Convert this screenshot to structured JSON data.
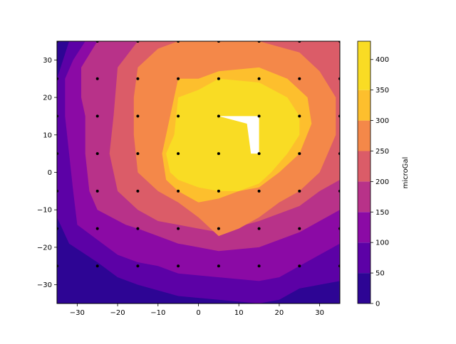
{
  "chart_data": {
    "type": "contourf",
    "title": "",
    "xlabel": "",
    "ylabel": "",
    "xlim": [
      -35,
      35
    ],
    "ylim": [
      -35,
      35
    ],
    "x_ticks": [
      -30,
      -20,
      -10,
      0,
      10,
      20,
      30
    ],
    "y_ticks": [
      -30,
      -20,
      -10,
      0,
      10,
      20,
      30
    ],
    "colorbar": {
      "label": "microGal",
      "range": [
        0,
        430
      ],
      "ticks": [
        0,
        50,
        100,
        150,
        200,
        250,
        300,
        350,
        400
      ],
      "colormap": "plasma"
    },
    "levels": [
      {
        "min": 0,
        "max": 50,
        "color": "#2d0594"
      },
      {
        "min": 50,
        "max": 100,
        "color": "#5c01a6"
      },
      {
        "min": 100,
        "max": 150,
        "color": "#8b0aa5"
      },
      {
        "min": 150,
        "max": 200,
        "color": "#b83289"
      },
      {
        "min": 200,
        "max": 250,
        "color": "#db5c68"
      },
      {
        "min": 250,
        "max": 300,
        "color": "#f48849"
      },
      {
        "min": 300,
        "max": 350,
        "color": "#fdbf2d"
      },
      {
        "min": 350,
        "max": 430,
        "color": "#f9dc24"
      }
    ],
    "contours": [
      {
        "level": 1,
        "points": [
          [
            -32,
            35
          ],
          [
            -35,
            25
          ],
          [
            -35,
            -12
          ],
          [
            -32,
            -19
          ],
          [
            -25,
            -24
          ],
          [
            -20,
            -28
          ],
          [
            -15,
            -30
          ],
          [
            -5,
            -33
          ],
          [
            5,
            -34
          ],
          [
            15,
            -35
          ],
          [
            20,
            -34
          ],
          [
            25,
            -31
          ],
          [
            30,
            -30
          ],
          [
            35,
            -29
          ],
          [
            35,
            35
          ]
        ]
      },
      {
        "level": 2,
        "points": [
          [
            -28,
            35
          ],
          [
            -31,
            30
          ],
          [
            -33,
            25
          ],
          [
            -33,
            15
          ],
          [
            -32,
            5
          ],
          [
            -31,
            -5
          ],
          [
            -30,
            -14
          ],
          [
            -25,
            -18
          ],
          [
            -20,
            -22
          ],
          [
            -15,
            -24
          ],
          [
            -10,
            -25
          ],
          [
            -5,
            -27
          ],
          [
            5,
            -28
          ],
          [
            15,
            -29
          ],
          [
            20,
            -28
          ],
          [
            25,
            -25
          ],
          [
            30,
            -22
          ],
          [
            35,
            -19
          ],
          [
            35,
            35
          ]
        ]
      },
      {
        "level": 3,
        "points": [
          [
            -25,
            35
          ],
          [
            -29,
            28
          ],
          [
            -29,
            20
          ],
          [
            -28,
            15
          ],
          [
            -28,
            5
          ],
          [
            -27,
            -5
          ],
          [
            -25,
            -10
          ],
          [
            -18,
            -14
          ],
          [
            -15,
            -15
          ],
          [
            -10,
            -17
          ],
          [
            -5,
            -19
          ],
          [
            0,
            -20
          ],
          [
            5,
            -21
          ],
          [
            15,
            -20
          ],
          [
            25,
            -16
          ],
          [
            30,
            -13
          ],
          [
            35,
            -10
          ],
          [
            35,
            35
          ]
        ]
      },
      {
        "level": 4,
        "points": [
          [
            -15,
            35
          ],
          [
            -20,
            28
          ],
          [
            -21,
            15
          ],
          [
            -22,
            5
          ],
          [
            -20,
            -5
          ],
          [
            -15,
            -10
          ],
          [
            -10,
            -13
          ],
          [
            -5,
            -14
          ],
          [
            0,
            -15
          ],
          [
            5,
            -16
          ],
          [
            15,
            -13
          ],
          [
            25,
            -9
          ],
          [
            30,
            -5
          ],
          [
            35,
            -2
          ],
          [
            35,
            35
          ]
        ]
      },
      {
        "level": 5,
        "points": [
          [
            -10,
            33
          ],
          [
            -15,
            28
          ],
          [
            -16,
            20
          ],
          [
            -16,
            10
          ],
          [
            -15,
            0
          ],
          [
            -10,
            -5
          ],
          [
            -5,
            -8
          ],
          [
            0,
            -12
          ],
          [
            5,
            -17
          ],
          [
            10,
            -15
          ],
          [
            15,
            -12
          ],
          [
            20,
            -8
          ],
          [
            25,
            -5
          ],
          [
            30,
            0
          ],
          [
            34,
            10
          ],
          [
            34,
            20
          ],
          [
            30,
            27
          ],
          [
            25,
            32
          ],
          [
            15,
            35
          ],
          [
            -5,
            35
          ]
        ]
      },
      {
        "level": 6,
        "points": [
          [
            -5,
            25
          ],
          [
            -7,
            15
          ],
          [
            -9,
            5
          ],
          [
            -8,
            -2
          ],
          [
            -5,
            -5
          ],
          [
            0,
            -8
          ],
          [
            5,
            -7
          ],
          [
            10,
            -5
          ],
          [
            15,
            -4
          ],
          [
            20,
            0
          ],
          [
            25,
            5
          ],
          [
            28,
            13
          ],
          [
            27,
            20
          ],
          [
            22,
            25
          ],
          [
            15,
            28
          ],
          [
            5,
            27
          ],
          [
            0,
            25
          ]
        ]
      },
      {
        "level": 7,
        "points": [
          [
            -5,
            20
          ],
          [
            -6,
            10
          ],
          [
            -8,
            5
          ],
          [
            -7,
            0
          ],
          [
            -5,
            -2
          ],
          [
            0,
            -4
          ],
          [
            5,
            -5
          ],
          [
            10,
            -5
          ],
          [
            15,
            -3
          ],
          [
            18,
            0
          ],
          [
            22,
            5
          ],
          [
            25,
            10
          ],
          [
            25,
            15
          ],
          [
            22,
            20
          ],
          [
            15,
            24
          ],
          [
            5,
            25
          ],
          [
            0,
            22
          ]
        ]
      }
    ],
    "hole": [
      [
        5,
        15
      ],
      [
        15,
        15
      ],
      [
        15,
        5
      ],
      [
        13,
        5
      ],
      [
        12,
        13
      ]
    ],
    "stations": [
      [
        -35,
        35
      ],
      [
        -25,
        35
      ],
      [
        -15,
        35
      ],
      [
        -5,
        35
      ],
      [
        5,
        35
      ],
      [
        15,
        35
      ],
      [
        25,
        35
      ],
      [
        35,
        35
      ],
      [
        -35,
        25
      ],
      [
        -25,
        25
      ],
      [
        -15,
        25
      ],
      [
        -5,
        25
      ],
      [
        5,
        25
      ],
      [
        15,
        25
      ],
      [
        25,
        25
      ],
      [
        35,
        25
      ],
      [
        -35,
        15
      ],
      [
        -25,
        15
      ],
      [
        -15,
        15
      ],
      [
        -5,
        15
      ],
      [
        5,
        15
      ],
      [
        15,
        15
      ],
      [
        25,
        15
      ],
      [
        35,
        15
      ],
      [
        -35,
        5
      ],
      [
        -25,
        5
      ],
      [
        -15,
        5
      ],
      [
        -5,
        5
      ],
      [
        5,
        5
      ],
      [
        15,
        5
      ],
      [
        25,
        5
      ],
      [
        35,
        5
      ],
      [
        -35,
        -5
      ],
      [
        -25,
        -5
      ],
      [
        -15,
        -5
      ],
      [
        -5,
        -5
      ],
      [
        5,
        -5
      ],
      [
        15,
        -5
      ],
      [
        25,
        -5
      ],
      [
        35,
        -5
      ],
      [
        -35,
        -15
      ],
      [
        -25,
        -15
      ],
      [
        -15,
        -15
      ],
      [
        -5,
        -15
      ],
      [
        5,
        -15
      ],
      [
        15,
        -15
      ],
      [
        25,
        -15
      ],
      [
        35,
        -15
      ],
      [
        -35,
        -25
      ],
      [
        -25,
        -25
      ],
      [
        -15,
        -25
      ],
      [
        -5,
        -25
      ],
      [
        5,
        -25
      ],
      [
        15,
        -25
      ],
      [
        25,
        -25
      ],
      [
        35,
        -25
      ]
    ]
  }
}
